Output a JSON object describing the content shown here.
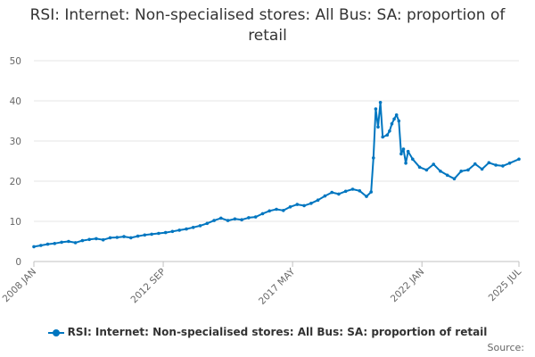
{
  "chart_data": {
    "type": "line",
    "title": "RSI: Internet: Non-specialised stores: All Bus: SA: proportion of retail",
    "xlabel": "",
    "ylabel": "",
    "ylim": [
      0,
      50
    ],
    "yticks": [
      0,
      10,
      20,
      30,
      40,
      50
    ],
    "xlim": [
      "2008-01",
      "2025-07"
    ],
    "xticks": [
      "2008 JAN",
      "2012 SEP",
      "2017 MAY",
      "2022 JAN",
      "2025 JUL"
    ],
    "grid": true,
    "legend_position": "bottom",
    "colors": {
      "series": "#0076c0",
      "grid": "#e6e6e6",
      "axis": "#c0c0c0"
    },
    "series": [
      {
        "name": "RSI: Internet: Non-specialised stores: All Bus: SA: proportion of retail",
        "x": [
          "2008-01",
          "2008-04",
          "2008-07",
          "2008-10",
          "2009-01",
          "2009-04",
          "2009-07",
          "2009-10",
          "2010-01",
          "2010-04",
          "2010-07",
          "2010-10",
          "2011-01",
          "2011-04",
          "2011-07",
          "2011-10",
          "2012-01",
          "2012-04",
          "2012-07",
          "2012-10",
          "2013-01",
          "2013-04",
          "2013-07",
          "2013-10",
          "2014-01",
          "2014-04",
          "2014-07",
          "2014-10",
          "2015-01",
          "2015-04",
          "2015-07",
          "2015-10",
          "2016-01",
          "2016-04",
          "2016-07",
          "2016-10",
          "2017-01",
          "2017-04",
          "2017-07",
          "2017-10",
          "2018-01",
          "2018-04",
          "2018-07",
          "2018-10",
          "2019-01",
          "2019-04",
          "2019-07",
          "2019-10",
          "2020-01",
          "2020-03",
          "2020-04",
          "2020-05",
          "2020-06",
          "2020-07",
          "2020-08",
          "2020-10",
          "2020-11",
          "2020-12",
          "2021-01",
          "2021-02",
          "2021-03",
          "2021-04",
          "2021-05",
          "2021-06",
          "2021-07",
          "2021-09",
          "2021-12",
          "2022-03",
          "2022-06",
          "2022-09",
          "2022-12",
          "2023-03",
          "2023-06",
          "2023-09",
          "2023-12",
          "2024-03",
          "2024-06",
          "2024-09",
          "2024-12",
          "2025-03",
          "2025-07"
        ],
        "values": [
          3.7,
          4.0,
          4.3,
          4.5,
          4.8,
          5.0,
          4.7,
          5.2,
          5.5,
          5.7,
          5.4,
          5.9,
          6.0,
          6.2,
          5.9,
          6.3,
          6.6,
          6.8,
          7.0,
          7.2,
          7.5,
          7.8,
          8.1,
          8.5,
          8.9,
          9.5,
          10.2,
          10.8,
          10.2,
          10.6,
          10.4,
          10.9,
          11.1,
          11.9,
          12.6,
          13.0,
          12.7,
          13.6,
          14.2,
          13.9,
          14.5,
          15.3,
          16.3,
          17.2,
          16.8,
          17.5,
          18.0,
          17.6,
          16.2,
          17.3,
          25.8,
          38.0,
          33.5,
          39.6,
          31.0,
          31.5,
          32.5,
          34.3,
          35.5,
          36.5,
          35.0,
          26.8,
          28.0,
          24.5,
          27.4,
          25.5,
          23.5,
          22.8,
          24.2,
          22.5,
          21.5,
          20.6,
          22.5,
          22.8,
          24.3,
          23.0,
          24.6,
          24.0,
          23.8,
          24.5,
          25.5
        ]
      }
    ]
  },
  "source_label": "Source:"
}
